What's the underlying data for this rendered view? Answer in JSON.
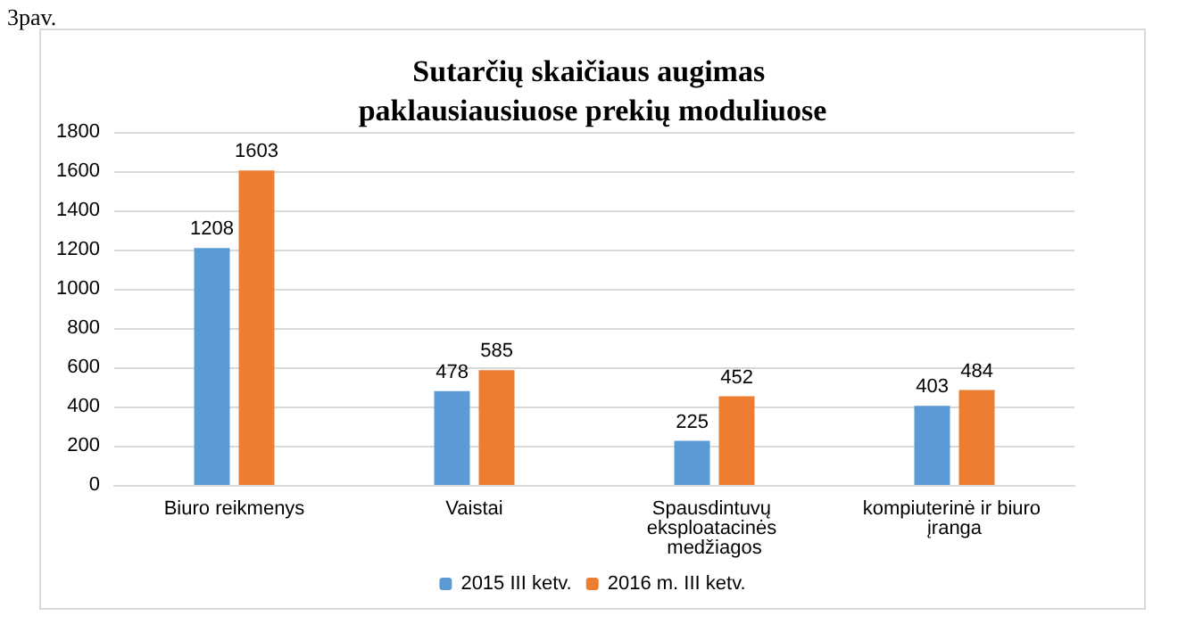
{
  "chart_data": {
    "type": "bar",
    "title": "Sutarčių skaičiaus augimas paklausiausiuose prekių moduliuose",
    "annotations": [
      "3pav."
    ],
    "categories": [
      "Biuro reikmenys",
      "Vaistai",
      "Spausdintuvų eksploatacinės medžiagos",
      "kompiuterinė ir biuro įranga"
    ],
    "series": [
      {
        "name": "2015 III ketv.",
        "color": "#5b9bd5",
        "values": [
          1208,
          478,
          225,
          403
        ]
      },
      {
        "name": "2016 m. III ketv.",
        "color": "#ed7d31",
        "values": [
          1603,
          585,
          452,
          484
        ]
      }
    ],
    "ylim": [
      0,
      1800
    ],
    "yticks": [
      0,
      200,
      400,
      600,
      800,
      1000,
      1200,
      1400,
      1600,
      1800
    ],
    "grid": "y",
    "legend": "bottom",
    "data_labels": true
  }
}
